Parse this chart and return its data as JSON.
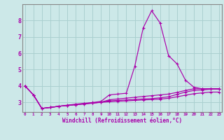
{
  "xlabel": "Windchill (Refroidissement éolien,°C)",
  "background_color": "#cce8e8",
  "grid_color": "#aad0d0",
  "line_color": "#aa00aa",
  "spine_color": "#888888",
  "x_ticks": [
    0,
    1,
    2,
    3,
    4,
    5,
    6,
    7,
    8,
    9,
    10,
    11,
    12,
    13,
    14,
    15,
    16,
    17,
    18,
    19,
    20,
    21,
    22,
    23
  ],
  "ylim": [
    2.4,
    9.0
  ],
  "xlim": [
    -0.3,
    23.3
  ],
  "yticks": [
    3,
    4,
    5,
    6,
    7,
    8
  ],
  "curves": [
    [
      4.0,
      3.45,
      2.62,
      2.68,
      2.75,
      2.82,
      2.88,
      2.93,
      2.98,
      3.05,
      3.45,
      3.5,
      3.55,
      5.2,
      7.55,
      8.6,
      7.85,
      5.85,
      5.35,
      4.35,
      3.92,
      3.82,
      3.82,
      3.82
    ],
    [
      4.0,
      3.45,
      2.62,
      2.68,
      2.75,
      2.8,
      2.85,
      2.9,
      2.95,
      3.0,
      3.15,
      3.2,
      3.25,
      3.3,
      3.35,
      3.4,
      3.45,
      3.5,
      3.6,
      3.72,
      3.82,
      3.82,
      3.82,
      3.82
    ],
    [
      4.0,
      3.45,
      2.62,
      2.68,
      2.75,
      2.8,
      2.86,
      2.91,
      2.96,
      3.0,
      3.08,
      3.11,
      3.14,
      3.17,
      3.2,
      3.22,
      3.27,
      3.33,
      3.48,
      3.62,
      3.72,
      3.75,
      3.8,
      3.8
    ],
    [
      4.0,
      3.45,
      2.62,
      2.68,
      2.75,
      2.8,
      2.84,
      2.89,
      2.94,
      2.99,
      3.03,
      3.06,
      3.08,
      3.11,
      3.14,
      3.16,
      3.19,
      3.24,
      3.33,
      3.43,
      3.52,
      3.57,
      3.62,
      3.62
    ]
  ]
}
